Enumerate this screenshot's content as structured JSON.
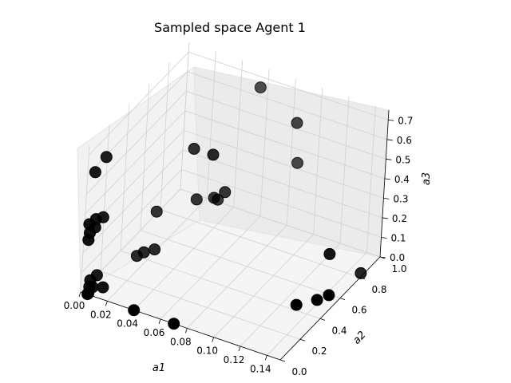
{
  "chart_data": {
    "type": "scatter",
    "projection": "3d",
    "title": "Sampled space Agent 1",
    "xlabel": "a1",
    "ylabel": "a2",
    "zlabel": "a3",
    "xlim": [
      0.0,
      0.15
    ],
    "ylim": [
      0.0,
      1.0
    ],
    "zlim": [
      0.0,
      0.75
    ],
    "x_ticks": [
      "0.00",
      "0.02",
      "0.04",
      "0.06",
      "0.08",
      "0.10",
      "0.12",
      "0.14"
    ],
    "y_ticks": [
      "0.0",
      "0.2",
      "0.4",
      "0.6",
      "0.8",
      "1.0"
    ],
    "z_ticks": [
      "0.0",
      "0.1",
      "0.2",
      "0.3",
      "0.4",
      "0.5",
      "0.6",
      "0.7"
    ],
    "grid": true,
    "marker_color": "#000000",
    "points": [
      {
        "x": 0.0,
        "y": 0.08,
        "z": 0.57
      },
      {
        "x": 0.002,
        "y": 0.16,
        "z": 0.61
      },
      {
        "x": 0.0,
        "y": 0.05,
        "z": 0.32
      },
      {
        "x": 0.002,
        "y": 0.09,
        "z": 0.33
      },
      {
        "x": 0.003,
        "y": 0.15,
        "z": 0.31
      },
      {
        "x": 0.0,
        "y": 0.06,
        "z": 0.27
      },
      {
        "x": 0.001,
        "y": 0.1,
        "z": 0.28
      },
      {
        "x": 0.0,
        "y": 0.05,
        "z": 0.24
      },
      {
        "x": 0.001,
        "y": 0.08,
        "z": 0.02
      },
      {
        "x": 0.002,
        "y": 0.06,
        "z": 0.0
      },
      {
        "x": 0.003,
        "y": 0.12,
        "z": 0.03
      },
      {
        "x": 0.002,
        "y": 0.05,
        "z": -0.03
      },
      {
        "x": 0.003,
        "y": 0.08,
        "z": -0.01
      },
      {
        "x": 0.001,
        "y": 0.06,
        "z": -0.04
      },
      {
        "x": 0.01,
        "y": 0.09,
        "z": 0.0
      },
      {
        "x": 0.005,
        "y": 0.01,
        "z": 0.0
      },
      {
        "x": 0.04,
        "y": 0.0,
        "z": 0.0
      },
      {
        "x": 0.07,
        "y": 0.0,
        "z": 0.0
      },
      {
        "x": 0.015,
        "y": 0.36,
        "z": 0.03
      },
      {
        "x": 0.02,
        "y": 0.36,
        "z": 0.06
      },
      {
        "x": 0.025,
        "y": 0.4,
        "z": 0.065
      },
      {
        "x": 0.02,
        "y": 0.47,
        "z": 0.21
      },
      {
        "x": 0.04,
        "y": 0.54,
        "z": 0.54
      },
      {
        "x": 0.055,
        "y": 0.53,
        "z": 0.55
      },
      {
        "x": 0.06,
        "y": 0.92,
        "z": 0.7
      },
      {
        "x": 0.04,
        "y": 0.6,
        "z": 0.25
      },
      {
        "x": 0.05,
        "y": 0.64,
        "z": 0.26
      },
      {
        "x": 0.055,
        "y": 0.68,
        "z": 0.28
      },
      {
        "x": 0.05,
        "y": 0.68,
        "z": 0.23
      },
      {
        "x": 0.085,
        "y": 0.97,
        "z": 0.55
      },
      {
        "x": 0.085,
        "y": 1.0,
        "z": 0.33
      },
      {
        "x": 0.13,
        "y": 0.75,
        "z": 0.1
      },
      {
        "x": 0.14,
        "y": 0.5,
        "z": 0.02
      },
      {
        "x": 0.145,
        "y": 0.55,
        "z": 0.03
      },
      {
        "x": 0.125,
        "y": 0.5,
        "z": -0.04
      },
      {
        "x": 0.14,
        "y": 0.95,
        "z": -0.08
      }
    ]
  }
}
